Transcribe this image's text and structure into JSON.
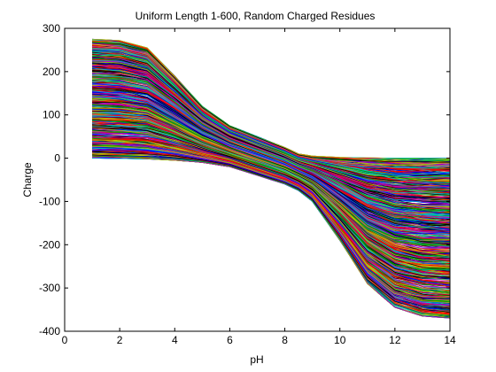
{
  "chart_data": {
    "type": "line",
    "title": "Uniform Length 1-600, Random Charged Residues",
    "xlabel": "pH",
    "ylabel": "Charge",
    "xlim": [
      0,
      14
    ],
    "ylim": [
      -400,
      300
    ],
    "xticks": [
      0,
      2,
      4,
      6,
      8,
      10,
      12,
      14
    ],
    "yticks": [
      -400,
      -300,
      -200,
      -100,
      0,
      100,
      200,
      300
    ],
    "grid": false,
    "legend": "none",
    "data_x_range": [
      1,
      14
    ],
    "series_count": 1000,
    "envelope": {
      "x": [
        1,
        2,
        3,
        4,
        5,
        6,
        7,
        8,
        8.5,
        9,
        10,
        11,
        12,
        13,
        14
      ],
      "upper": [
        275,
        272,
        255,
        190,
        120,
        75,
        50,
        25,
        10,
        5,
        2,
        1,
        0,
        0,
        0
      ],
      "lower": [
        0,
        -1,
        -2,
        -5,
        -10,
        -20,
        -40,
        -60,
        -75,
        -100,
        -190,
        -290,
        -345,
        -365,
        -370
      ]
    },
    "colors": [
      "#ff0000",
      "#0000ff",
      "#00a000",
      "#00c0c0",
      "#c000c0",
      "#c0c000",
      "#000000"
    ]
  }
}
